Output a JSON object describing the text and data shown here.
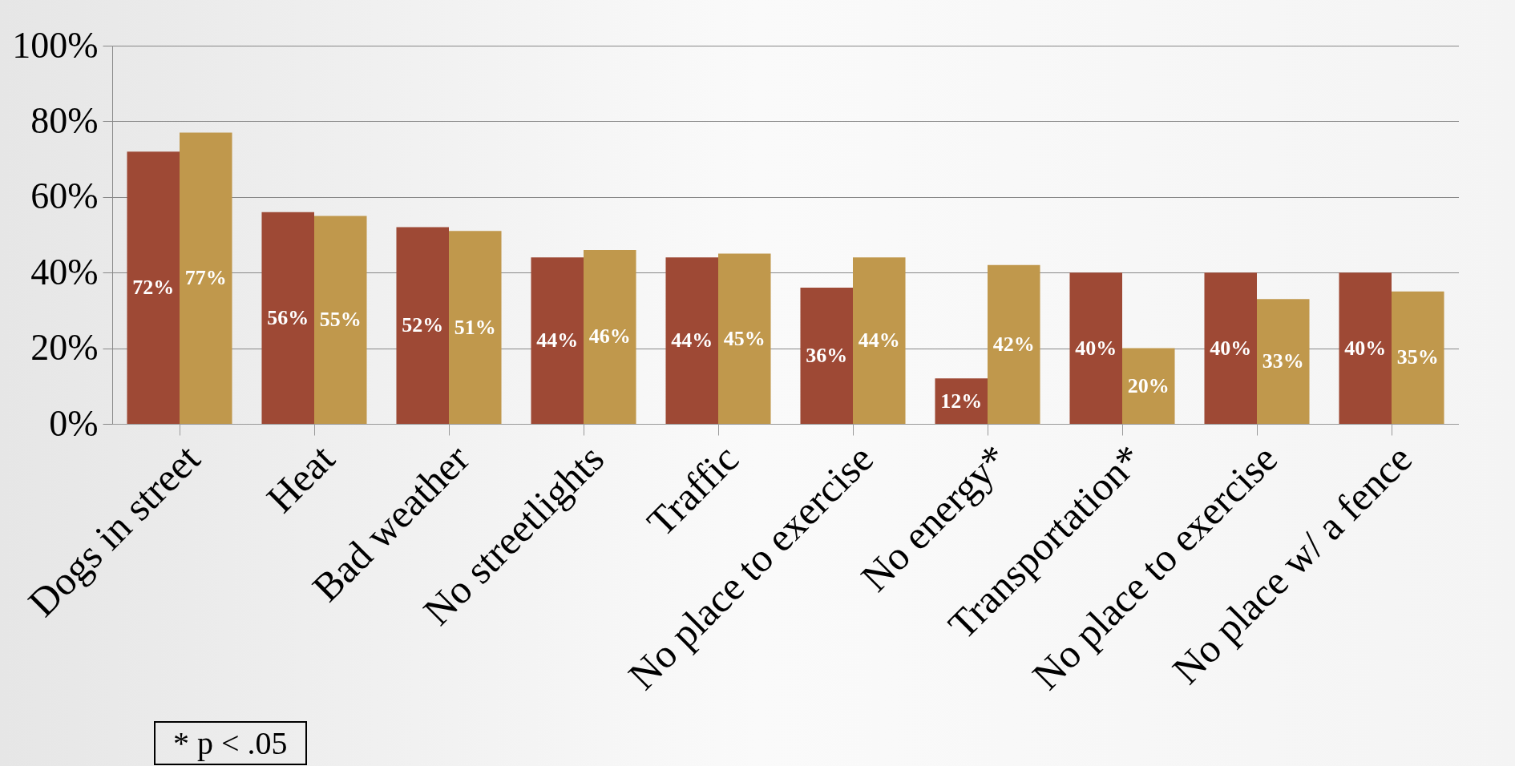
{
  "chart_data": {
    "type": "bar",
    "categories": [
      "Dogs in street",
      "Heat",
      "Bad weather",
      "No streetlights",
      "Traffic",
      "No place to exercise",
      "No energy*",
      "Transportation*",
      "No place to exercise",
      "No place w/ a fence"
    ],
    "series": [
      {
        "color": "#9e4935",
        "values": [
          72,
          56,
          52,
          44,
          44,
          36,
          12,
          40,
          40,
          40
        ],
        "value_labels": [
          "72%",
          "56%",
          "52%",
          "44%",
          "44%",
          "36%",
          "12%",
          "40%",
          "40%",
          "40%"
        ]
      },
      {
        "color": "#c0984c",
        "values": [
          77,
          55,
          51,
          46,
          45,
          44,
          42,
          20,
          33,
          35
        ],
        "value_labels": [
          "77%",
          "55%",
          "51%",
          "46%",
          "45%",
          "44%",
          "42%",
          "20%",
          "33%",
          "35%"
        ]
      }
    ],
    "ylim": [
      0,
      100
    ],
    "yticks": [
      {
        "value": 0,
        "label": "0%"
      },
      {
        "value": 20,
        "label": "20%"
      },
      {
        "value": 40,
        "label": "40%"
      },
      {
        "value": 60,
        "label": "60%"
      },
      {
        "value": 80,
        "label": "80%"
      },
      {
        "value": 100,
        "label": "100%"
      }
    ],
    "grid": "y",
    "legend": false,
    "annotations": [
      "* p < .05"
    ]
  }
}
